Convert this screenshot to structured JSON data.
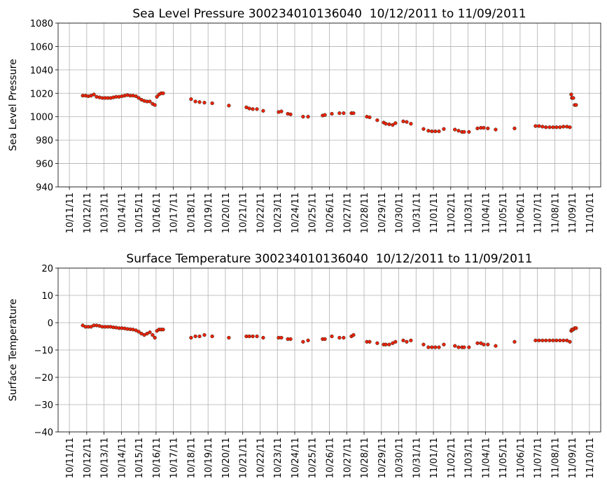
{
  "chart_data": [
    {
      "type": "scatter",
      "title": "Sea Level Pressure 300234010136040  10/12/2011 to 11/09/2011",
      "ylabel": "Sea Level Pressure",
      "color": "#ee2200",
      "grid": true,
      "xlim": [
        -0.65,
        30.65
      ],
      "ylim": [
        940,
        1080
      ],
      "yticks": [
        940,
        960,
        980,
        1000,
        1020,
        1040,
        1060,
        1080
      ],
      "xticks": [
        {
          "value": 0,
          "label": "10/11/11"
        },
        {
          "value": 1,
          "label": "10/12/11"
        },
        {
          "value": 2,
          "label": "10/13/11"
        },
        {
          "value": 3,
          "label": "10/14/11"
        },
        {
          "value": 4,
          "label": "10/15/11"
        },
        {
          "value": 5,
          "label": "10/16/11"
        },
        {
          "value": 6,
          "label": "10/17/11"
        },
        {
          "value": 7,
          "label": "10/18/11"
        },
        {
          "value": 8,
          "label": "10/19/11"
        },
        {
          "value": 9,
          "label": "10/20/11"
        },
        {
          "value": 10,
          "label": "10/21/11"
        },
        {
          "value": 11,
          "label": "10/22/11"
        },
        {
          "value": 12,
          "label": "10/23/11"
        },
        {
          "value": 13,
          "label": "10/24/11"
        },
        {
          "value": 14,
          "label": "10/25/11"
        },
        {
          "value": 15,
          "label": "10/26/11"
        },
        {
          "value": 16,
          "label": "10/27/11"
        },
        {
          "value": 17,
          "label": "10/28/11"
        },
        {
          "value": 18,
          "label": "10/29/11"
        },
        {
          "value": 19,
          "label": "10/30/11"
        },
        {
          "value": 20,
          "label": "10/31/11"
        },
        {
          "value": 21,
          "label": "11/01/11"
        },
        {
          "value": 22,
          "label": "11/02/11"
        },
        {
          "value": 23,
          "label": "11/03/11"
        },
        {
          "value": 24,
          "label": "11/04/11"
        },
        {
          "value": 25,
          "label": "11/05/11"
        },
        {
          "value": 26,
          "label": "11/06/11"
        },
        {
          "value": 27,
          "label": "11/07/11"
        },
        {
          "value": 28,
          "label": "11/08/11"
        },
        {
          "value": 29,
          "label": "11/09/11"
        },
        {
          "value": 30,
          "label": "11/10/11"
        }
      ],
      "x": [
        0.77,
        0.93,
        1.09,
        1.25,
        1.41,
        1.57,
        1.74,
        1.9,
        2.06,
        2.22,
        2.38,
        2.54,
        2.7,
        2.87,
        3.03,
        3.19,
        3.35,
        3.51,
        3.67,
        3.84,
        4.0,
        4.16,
        4.32,
        4.48,
        4.64,
        4.8,
        4.93,
        5.05,
        5.17,
        5.29,
        5.41,
        7.02,
        7.27,
        7.51,
        7.79,
        8.24,
        9.2,
        10.21,
        10.38,
        10.58,
        10.82,
        11.18,
        12.07,
        12.23,
        12.6,
        12.76,
        13.48,
        13.77,
        14.61,
        14.74,
        15.14,
        15.58,
        15.82,
        16.27,
        16.39,
        17.16,
        17.32,
        17.76,
        18.13,
        18.25,
        18.45,
        18.65,
        18.81,
        19.26,
        19.46,
        19.7,
        20.43,
        20.71,
        20.91,
        21.11,
        21.32,
        21.6,
        22.24,
        22.45,
        22.65,
        22.77,
        23.05,
        23.54,
        23.74,
        23.9,
        24.14,
        24.59,
        25.68,
        26.89,
        27.09,
        27.29,
        27.49,
        27.7,
        27.9,
        28.1,
        28.3,
        28.5,
        28.7,
        28.87,
        28.95,
        28.99,
        29.07,
        29.15,
        29.23
      ],
      "values": [
        1018,
        1018,
        1017.5,
        1018,
        1019,
        1017,
        1016.5,
        1016,
        1016,
        1016,
        1016,
        1016.5,
        1017,
        1017,
        1017.5,
        1018,
        1018.5,
        1018,
        1018,
        1017.5,
        1016,
        1014.5,
        1013.5,
        1013,
        1013,
        1011,
        1010,
        1017,
        1019,
        1020,
        1020,
        1015,
        1013,
        1012.5,
        1012,
        1011.5,
        1009.5,
        1008,
        1007,
        1006.5,
        1006.5,
        1005,
        1004,
        1004.5,
        1002.5,
        1002,
        1000,
        1000,
        1001,
        1001.5,
        1002.5,
        1003,
        1003,
        1003,
        1003,
        1000,
        999.5,
        997,
        995,
        994,
        993.5,
        993,
        994.5,
        996,
        995.5,
        994,
        989.5,
        988,
        987.5,
        987.5,
        987.5,
        989.5,
        989,
        988,
        987,
        987,
        987,
        990,
        990.5,
        990.5,
        990,
        989,
        990,
        992,
        992,
        991.5,
        991,
        991,
        991,
        991,
        991,
        991.5,
        991.5,
        991,
        1019,
        1016,
        1016,
        1010,
        1010
      ]
    },
    {
      "type": "scatter",
      "title": "Surface Temperature 300234010136040  10/12/2011 to 11/09/2011",
      "ylabel": "Surface Temperature",
      "color": "#ee2200",
      "grid": true,
      "xlim": [
        -0.65,
        30.65
      ],
      "ylim": [
        -40,
        20
      ],
      "yticks": [
        {
          "value": -40,
          "label": "−40"
        },
        {
          "value": -30,
          "label": "−30"
        },
        {
          "value": -20,
          "label": "−20"
        },
        {
          "value": -10,
          "label": "−10"
        },
        {
          "value": 0,
          "label": "0"
        },
        {
          "value": 10,
          "label": "10"
        },
        {
          "value": 20,
          "label": "20"
        }
      ],
      "xticks": [
        {
          "value": 0,
          "label": "10/11/11"
        },
        {
          "value": 1,
          "label": "10/12/11"
        },
        {
          "value": 2,
          "label": "10/13/11"
        },
        {
          "value": 3,
          "label": "10/14/11"
        },
        {
          "value": 4,
          "label": "10/15/11"
        },
        {
          "value": 5,
          "label": "10/16/11"
        },
        {
          "value": 6,
          "label": "10/17/11"
        },
        {
          "value": 7,
          "label": "10/18/11"
        },
        {
          "value": 8,
          "label": "10/19/11"
        },
        {
          "value": 9,
          "label": "10/20/11"
        },
        {
          "value": 10,
          "label": "10/21/11"
        },
        {
          "value": 11,
          "label": "10/22/11"
        },
        {
          "value": 12,
          "label": "10/23/11"
        },
        {
          "value": 13,
          "label": "10/24/11"
        },
        {
          "value": 14,
          "label": "10/25/11"
        },
        {
          "value": 15,
          "label": "10/26/11"
        },
        {
          "value": 16,
          "label": "10/27/11"
        },
        {
          "value": 17,
          "label": "10/28/11"
        },
        {
          "value": 18,
          "label": "10/29/11"
        },
        {
          "value": 19,
          "label": "10/30/11"
        },
        {
          "value": 20,
          "label": "10/31/11"
        },
        {
          "value": 21,
          "label": "11/01/11"
        },
        {
          "value": 22,
          "label": "11/02/11"
        },
        {
          "value": 23,
          "label": "11/03/11"
        },
        {
          "value": 24,
          "label": "11/04/11"
        },
        {
          "value": 25,
          "label": "11/05/11"
        },
        {
          "value": 26,
          "label": "11/06/11"
        },
        {
          "value": 27,
          "label": "11/07/11"
        },
        {
          "value": 28,
          "label": "11/08/11"
        },
        {
          "value": 29,
          "label": "11/09/11"
        },
        {
          "value": 30,
          "label": "11/10/11"
        }
      ],
      "x": [
        0.77,
        0.93,
        1.09,
        1.25,
        1.41,
        1.57,
        1.74,
        1.9,
        2.06,
        2.22,
        2.38,
        2.54,
        2.7,
        2.87,
        3.03,
        3.19,
        3.35,
        3.51,
        3.67,
        3.84,
        4.0,
        4.16,
        4.32,
        4.48,
        4.64,
        4.8,
        4.93,
        5.05,
        5.17,
        5.29,
        5.41,
        7.02,
        7.27,
        7.51,
        7.79,
        8.24,
        9.2,
        10.21,
        10.38,
        10.58,
        10.82,
        11.18,
        12.07,
        12.23,
        12.6,
        12.76,
        13.48,
        13.77,
        14.61,
        14.74,
        15.14,
        15.58,
        15.82,
        16.27,
        16.39,
        17.16,
        17.32,
        17.76,
        18.13,
        18.25,
        18.45,
        18.65,
        18.81,
        19.26,
        19.46,
        19.7,
        20.43,
        20.71,
        20.91,
        21.11,
        21.32,
        21.6,
        22.24,
        22.45,
        22.65,
        22.77,
        23.05,
        23.54,
        23.74,
        23.9,
        24.14,
        24.59,
        25.68,
        26.89,
        27.09,
        27.29,
        27.49,
        27.7,
        27.9,
        28.1,
        28.3,
        28.5,
        28.7,
        28.87,
        28.95,
        28.99,
        29.07,
        29.15,
        29.23
      ],
      "values": [
        -1,
        -1.5,
        -1.5,
        -1.5,
        -1,
        -1,
        -1.2,
        -1.5,
        -1.5,
        -1.5,
        -1.5,
        -1.7,
        -1.8,
        -2,
        -2,
        -2.1,
        -2.3,
        -2.4,
        -2.5,
        -2.8,
        -3.3,
        -4,
        -4.5,
        -4,
        -3.5,
        -4.5,
        -5.5,
        -3,
        -2.5,
        -2.5,
        -2.5,
        -5.5,
        -5,
        -5,
        -4.5,
        -5,
        -5.5,
        -5,
        -5,
        -5,
        -5,
        -5.5,
        -5.5,
        -5.5,
        -6,
        -6,
        -7,
        -6.5,
        -6,
        -6,
        -5,
        -5.5,
        -5.5,
        -5,
        -4.5,
        -7,
        -7,
        -7.5,
        -8,
        -8,
        -8,
        -7.5,
        -7,
        -6.5,
        -7,
        -6.5,
        -8,
        -9,
        -9,
        -9,
        -9,
        -8,
        -8.5,
        -9,
        -9,
        -9,
        -9,
        -7.5,
        -7.5,
        -8,
        -8,
        -8.5,
        -7,
        -6.5,
        -6.5,
        -6.5,
        -6.5,
        -6.5,
        -6.5,
        -6.5,
        -6.5,
        -6.5,
        -6.5,
        -7,
        -3,
        -2.5,
        -2.5,
        -2,
        -2
      ]
    }
  ]
}
